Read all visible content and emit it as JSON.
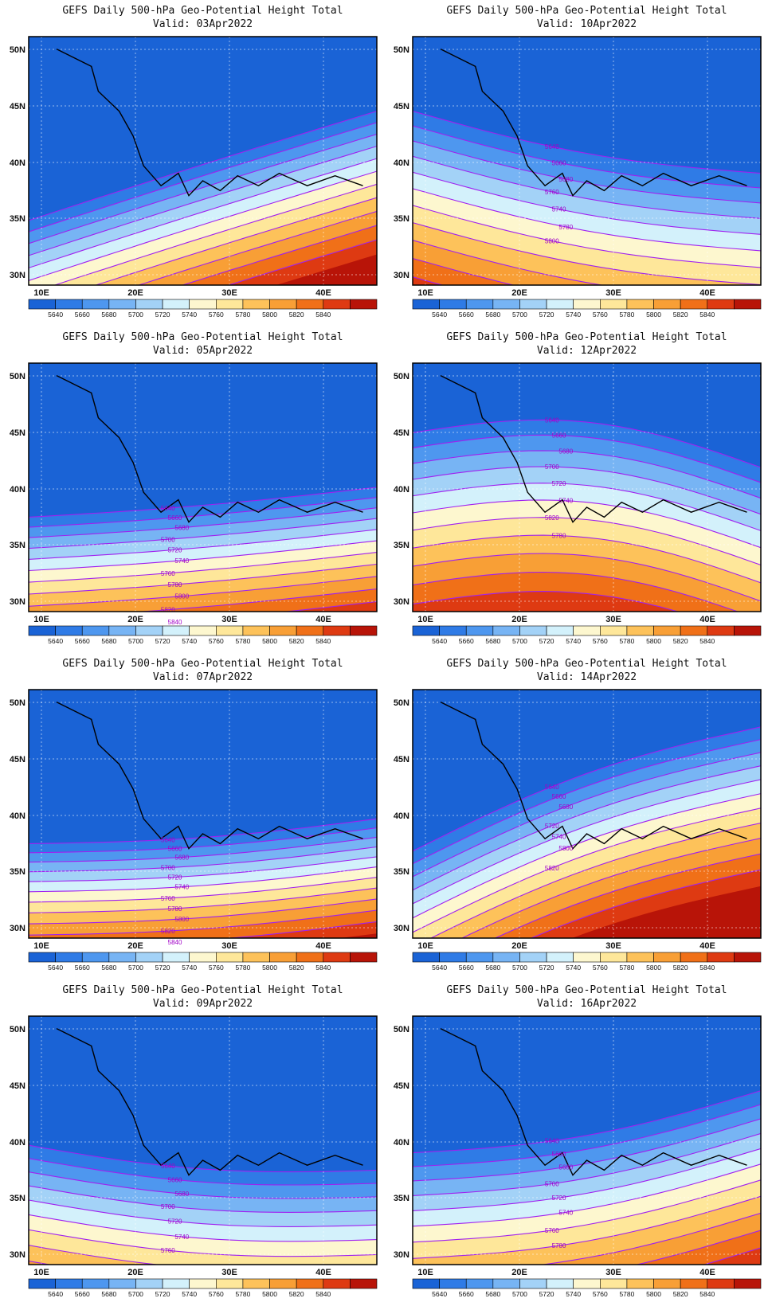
{
  "colorbar": {
    "levels": [
      "5640",
      "5660",
      "5680",
      "5700",
      "5720",
      "5740",
      "5760",
      "5780",
      "5800",
      "5820",
      "5840"
    ],
    "colors": [
      "#1a63d6",
      "#2f7be6",
      "#4e97ef",
      "#77b4f4",
      "#a3d2f7",
      "#d3f1fb",
      "#fdf7cf",
      "#fee79a",
      "#fdc25a",
      "#f89f36",
      "#f07018",
      "#de3a12",
      "#b81408"
    ],
    "contour_color": "#a020f0"
  },
  "axes": {
    "lon_ticks": [
      "10E",
      "20E",
      "30E",
      "40E"
    ],
    "lat_ticks": [
      "50N",
      "45N",
      "40N",
      "35N",
      "30N"
    ]
  },
  "panels": [
    {
      "title": "GEFS Daily 500-hPa Geo-Potential Height Total",
      "valid": "Valid: 03Apr2022",
      "contour_labels": []
    },
    {
      "title": "GEFS Daily 500-hPa Geo-Potential Height Total",
      "valid": "Valid: 10Apr2022",
      "contour_labels": [
        "5640",
        "5660",
        "5680",
        "5760",
        "5740",
        "5780",
        "5800"
      ]
    },
    {
      "title": "GEFS Daily 500-hPa Geo-Potential Height Total",
      "valid": "Valid: 05Apr2022",
      "contour_labels": [
        "5640",
        "5660",
        "5680",
        "5700",
        "5720",
        "5740",
        "5760",
        "5780",
        "5800",
        "5820",
        "5840"
      ]
    },
    {
      "title": "GEFS Daily 500-hPa Geo-Potential Height Total",
      "valid": "Valid: 12Apr2022",
      "contour_labels": [
        "5640",
        "5660",
        "5680",
        "5700",
        "5720",
        "5740",
        "5820",
        "5780"
      ]
    },
    {
      "title": "GEFS Daily 500-hPa Geo-Potential Height Total",
      "valid": "Valid: 07Apr2022",
      "contour_labels": [
        "5640",
        "5660",
        "5680",
        "5700",
        "5720",
        "5740",
        "5760",
        "5780",
        "5800",
        "5820",
        "5840"
      ]
    },
    {
      "title": "GEFS Daily 500-hPa Geo-Potential Height Total",
      "valid": "Valid: 14Apr2022",
      "contour_labels": [
        "5640",
        "5660",
        "5680",
        "5720",
        "5740",
        "5800",
        "5820"
      ]
    },
    {
      "title": "GEFS Daily 500-hPa Geo-Potential Height Total",
      "valid": "Valid: 09Apr2022",
      "contour_labels": [
        "5640",
        "5660",
        "5680",
        "5700",
        "5720",
        "5740",
        "5760"
      ]
    },
    {
      "title": "GEFS Daily 500-hPa Geo-Potential Height Total",
      "valid": "Valid: 16Apr2022",
      "contour_labels": [
        "5640",
        "5660",
        "5680",
        "5700",
        "5720",
        "5740",
        "5760",
        "5780"
      ]
    }
  ]
}
